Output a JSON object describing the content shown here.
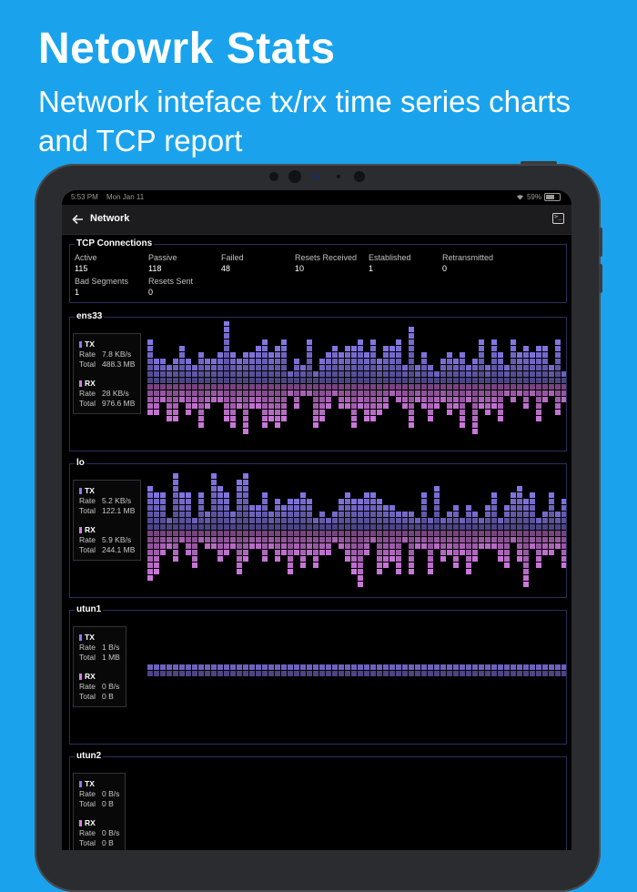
{
  "hero": {
    "title": "Netowrk Stats",
    "subtitle": "Network inteface tx/rx time series charts and TCP report"
  },
  "status": {
    "time": "5:53 PM",
    "date": "Mon Jan 11",
    "battery": "59%"
  },
  "nav": {
    "title": "Network",
    "back_icon": "arrow-left-icon",
    "action_icon": "terminal-icon"
  },
  "colors": {
    "tx": "#8a7df0",
    "rx": "#d77ee8",
    "accent": "#1aa3ec"
  },
  "tcp": {
    "title": "TCP Connections",
    "stats": [
      {
        "label": "Active",
        "value": "115"
      },
      {
        "label": "Passive",
        "value": "118"
      },
      {
        "label": "Failed",
        "value": "48"
      },
      {
        "label": "Resets Received",
        "value": "10"
      },
      {
        "label": "Established",
        "value": "1"
      },
      {
        "label": "Retransmitted",
        "value": "0"
      },
      {
        "label": "Bad Segments",
        "value": "1"
      },
      {
        "label": "Resets Sent",
        "value": "0"
      }
    ]
  },
  "labels": {
    "tx": "TX",
    "rx": "RX",
    "rate": "Rate",
    "total": "Total"
  },
  "interfaces": [
    {
      "name": "ens33",
      "tx_rate": "7.8 KB/s",
      "tx_total": "488.3 MB",
      "rx_rate": "28 KB/s",
      "rx_total": "976.6 MB"
    },
    {
      "name": "lo",
      "tx_rate": "5.2 KB/s",
      "tx_total": "122.1 MB",
      "rx_rate": "5.9 KB/s",
      "rx_total": "244.1 MB"
    },
    {
      "name": "utun1",
      "tx_rate": "1 B/s",
      "tx_total": "1 MB",
      "rx_rate": "0 B/s",
      "rx_total": "0 B"
    },
    {
      "name": "utun2",
      "tx_rate": "0 B/s",
      "tx_total": "0 B",
      "rx_rate": "0 B/s",
      "rx_total": "0 B"
    }
  ]
}
